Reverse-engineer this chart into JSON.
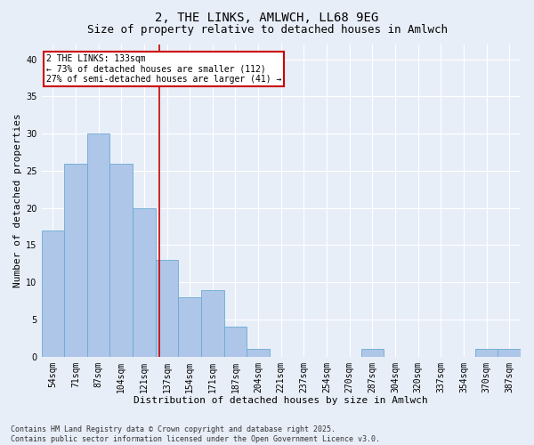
{
  "title1": "2, THE LINKS, AMLWCH, LL68 9EG",
  "title2": "Size of property relative to detached houses in Amlwch",
  "xlabel": "Distribution of detached houses by size in Amlwch",
  "ylabel": "Number of detached properties",
  "categories": [
    "54sqm",
    "71sqm",
    "87sqm",
    "104sqm",
    "121sqm",
    "137sqm",
    "154sqm",
    "171sqm",
    "187sqm",
    "204sqm",
    "221sqm",
    "237sqm",
    "254sqm",
    "270sqm",
    "287sqm",
    "304sqm",
    "320sqm",
    "337sqm",
    "354sqm",
    "370sqm",
    "387sqm"
  ],
  "values": [
    17,
    26,
    30,
    26,
    20,
    13,
    8,
    9,
    4,
    1,
    0,
    0,
    0,
    0,
    1,
    0,
    0,
    0,
    0,
    1,
    1
  ],
  "bar_color": "#aec6e8",
  "bar_edge_color": "#6aaad4",
  "background_color": "#e8eef8",
  "grid_color": "#ffffff",
  "red_line_x": 4.67,
  "annotation_text": "2 THE LINKS: 133sqm\n← 73% of detached houses are smaller (112)\n27% of semi-detached houses are larger (41) →",
  "annotation_box_color": "#ffffff",
  "annotation_box_edge_color": "#cc0000",
  "ylim": [
    0,
    42
  ],
  "yticks": [
    0,
    5,
    10,
    15,
    20,
    25,
    30,
    35,
    40
  ],
  "footer": "Contains HM Land Registry data © Crown copyright and database right 2025.\nContains public sector information licensed under the Open Government Licence v3.0.",
  "title_fontsize": 10,
  "subtitle_fontsize": 9,
  "axis_label_fontsize": 8,
  "tick_fontsize": 7,
  "annotation_fontsize": 7,
  "footer_fontsize": 6
}
